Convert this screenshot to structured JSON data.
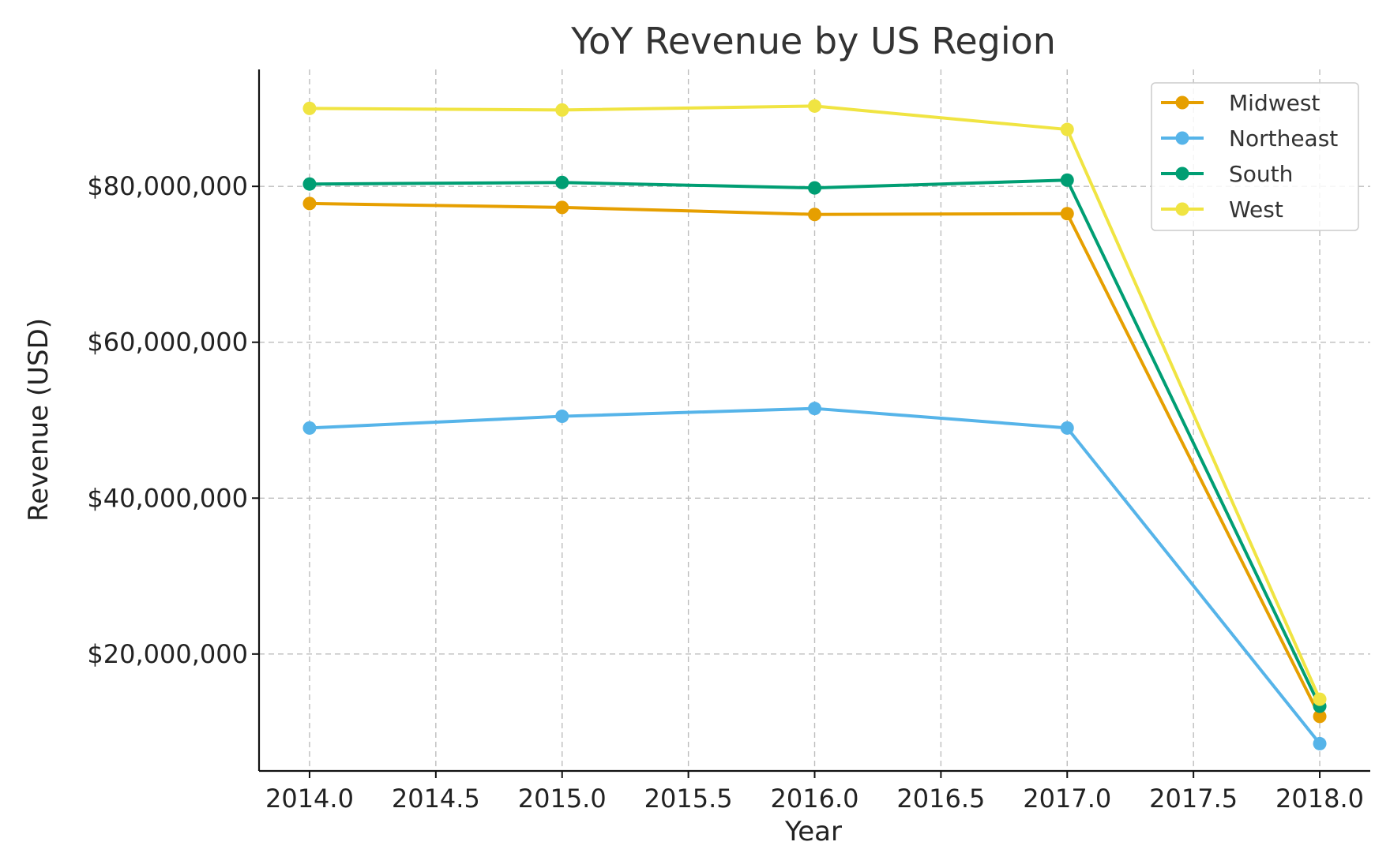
{
  "chart_data": {
    "type": "line",
    "title": "YoY Revenue by US Region",
    "xlabel": "Year",
    "ylabel": "Revenue (USD)",
    "x": [
      2014,
      2015,
      2016,
      2017,
      2018
    ],
    "xlim": [
      2013.8,
      2018.2
    ],
    "ylim": [
      5000000,
      95000000
    ],
    "xticks": [
      2014.0,
      2014.5,
      2015.0,
      2015.5,
      2016.0,
      2016.5,
      2017.0,
      2017.5,
      2018.0
    ],
    "xtick_labels": [
      "2014.0",
      "2014.5",
      "2015.0",
      "2015.5",
      "2016.0",
      "2016.5",
      "2017.0",
      "2017.5",
      "2018.0"
    ],
    "yticks": [
      20000000,
      40000000,
      60000000,
      80000000
    ],
    "ytick_labels": [
      "$20,000,000",
      "$40,000,000",
      "$60,000,000",
      "$80,000,000"
    ],
    "grid": true,
    "legend_position": "top-right",
    "series": [
      {
        "name": "Midwest",
        "color": "#E69F00",
        "values": [
          77800000,
          77300000,
          76400000,
          76500000,
          12000000
        ]
      },
      {
        "name": "Northeast",
        "color": "#56B4E9",
        "values": [
          49000000,
          50500000,
          51500000,
          49000000,
          8500000
        ]
      },
      {
        "name": "South",
        "color": "#009E73",
        "values": [
          80300000,
          80500000,
          79800000,
          80800000,
          13300000
        ]
      },
      {
        "name": "West",
        "color": "#F0E442",
        "values": [
          90000000,
          89800000,
          90300000,
          87300000,
          14200000
        ]
      }
    ]
  }
}
